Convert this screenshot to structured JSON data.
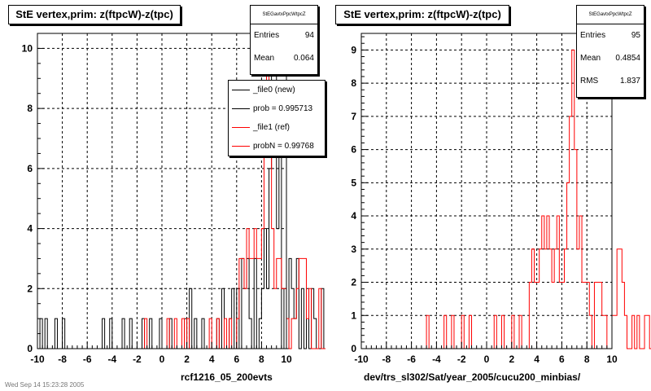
{
  "footer": {
    "text": "Wed Sep 14 15:23:28 2005"
  },
  "colors": {
    "new": "#000000",
    "ref": "#ff0000",
    "grid": "#000000"
  },
  "legend": {
    "entries": [
      {
        "label": "_file0 (new)",
        "color": "#000000"
      },
      {
        "label": "prob = 0.995713",
        "color": "#000000"
      },
      {
        "label": "_file1 (ref)",
        "color": "#ff0000"
      },
      {
        "label": "probN = 0.99768",
        "color": "#ff0000"
      }
    ]
  },
  "panels": [
    {
      "title": "StE  vertex,prim: z(ftpcW)-z(tpc)",
      "stats": {
        "header": "StEGavtxPpcWtpcZ",
        "rows": [
          {
            "label": "Entries",
            "value": "94"
          },
          {
            "label": "Mean",
            "value": "0.064"
          }
        ]
      },
      "xlabel": "rcf1216_05_200evts"
    },
    {
      "title": "StE  vertex,prim: z(ftpcW)-z(tpc)",
      "stats": {
        "header": "StEGavtxPpcWtpcZ",
        "rows": [
          {
            "label": "Entries",
            "value": "95"
          },
          {
            "label": "Mean",
            "value": "0.4854"
          },
          {
            "label": "RMS",
            "value": "1.837"
          }
        ]
      },
      "xlabel": "dev/trs_sl302/Sat/year_2005/cucu200_minbias/"
    }
  ],
  "chart_data": [
    {
      "type": "line",
      "title": "StE  vertex,prim: z(ftpcW)-z(tpc)",
      "xlabel": "rcf1216_05_200evts",
      "ylabel": "",
      "xlim": [
        -10,
        10
      ],
      "ylim": [
        0,
        10.5
      ],
      "x_ticks": [
        -10,
        -8,
        -6,
        -4,
        -2,
        0,
        2,
        4,
        6,
        8,
        10
      ],
      "y_ticks": [
        0,
        2,
        4,
        6,
        8,
        10
      ],
      "grid": true,
      "legend_position": "top-right",
      "bin_edges_from": -10,
      "bin_width": 0.2,
      "series": [
        {
          "name": "_file0 (new)",
          "values": [
            0,
            1,
            0,
            1,
            0,
            0,
            0,
            1,
            0,
            0,
            1,
            0,
            0,
            0,
            0,
            0,
            0,
            0,
            0,
            0,
            0,
            0,
            0,
            0,
            0,
            0,
            1,
            0,
            0,
            1,
            0,
            0,
            0,
            0,
            1,
            0,
            0,
            1,
            0,
            0,
            0,
            0,
            1,
            0,
            0,
            1,
            0,
            0,
            0,
            1,
            0,
            0,
            0,
            1,
            0,
            0,
            0,
            0,
            0,
            1,
            0,
            2,
            0,
            1,
            0,
            0,
            1,
            0,
            0,
            0,
            0,
            0,
            1,
            0,
            2,
            0,
            0,
            1,
            2,
            0,
            2,
            0,
            3,
            2,
            3,
            1,
            0,
            3,
            0,
            1,
            2,
            4,
            2,
            6,
            10,
            10,
            4,
            7,
            0,
            2,
            0,
            3,
            2,
            1,
            3,
            0,
            2,
            0,
            2,
            0,
            2,
            1,
            0,
            0,
            2,
            0,
            0,
            1,
            0,
            2,
            0,
            0,
            0,
            0,
            0,
            0,
            0,
            0,
            0,
            0,
            0,
            0,
            1,
            0,
            0,
            1,
            0,
            0,
            0,
            0,
            0,
            0,
            0,
            0,
            0,
            0,
            0,
            0,
            0,
            0,
            0,
            0,
            0,
            0,
            0,
            1,
            0,
            0,
            1,
            0,
            0,
            0,
            1,
            0,
            0,
            0,
            0,
            0,
            0,
            0,
            0,
            0,
            0,
            0,
            0,
            0,
            0,
            0,
            0,
            0,
            0,
            0,
            0,
            0,
            0,
            0,
            0,
            1,
            0,
            0,
            1,
            1,
            0,
            0,
            0,
            0
          ]
        },
        {
          "name": "_file1 (ref)",
          "values": [
            0,
            0,
            0,
            0,
            0,
            0,
            0,
            0,
            0,
            0,
            0,
            0,
            0,
            0,
            0,
            0,
            0,
            0,
            0,
            0,
            0,
            0,
            0,
            0,
            0,
            0,
            0,
            0,
            0,
            0,
            0,
            0,
            0,
            0,
            0,
            0,
            0,
            0,
            0,
            0,
            0,
            0,
            0,
            1,
            0,
            0,
            0,
            0,
            0,
            0,
            0,
            0,
            1,
            0,
            0,
            1,
            0,
            0,
            1,
            0,
            1,
            0,
            0,
            0,
            0,
            0,
            0,
            0,
            0,
            1,
            0,
            0,
            1,
            0,
            0,
            1,
            0,
            1,
            0,
            0,
            1,
            3,
            3,
            2,
            4,
            3,
            3,
            4,
            3,
            3,
            4,
            8,
            10,
            7,
            4,
            2,
            3,
            3,
            2,
            2,
            1,
            0,
            1,
            1,
            2,
            3,
            3,
            3,
            1,
            2,
            0,
            0,
            0,
            2,
            0,
            0,
            1,
            0,
            3,
            1,
            0,
            1,
            1,
            0,
            0,
            0,
            0,
            0,
            0,
            0,
            0,
            0,
            0,
            0,
            0,
            0,
            0,
            0,
            0,
            0,
            0,
            0,
            0,
            0,
            0,
            0,
            0,
            0,
            0,
            0,
            0,
            1,
            0,
            0,
            1,
            0,
            0,
            0,
            1,
            0,
            0,
            0,
            0,
            0,
            0,
            0,
            0,
            0,
            0,
            0,
            0,
            0,
            0,
            0,
            0,
            0,
            0,
            0,
            0,
            0,
            0,
            0,
            0,
            0,
            0,
            0,
            0,
            0,
            0,
            0,
            0,
            0,
            0,
            0,
            0,
            0
          ]
        }
      ]
    },
    {
      "type": "line",
      "title": "StE  vertex,prim: z(ftpcW)-z(tpc)",
      "xlabel": "dev/trs_sl302/Sat/year_2005/cucu200_minbias/",
      "ylabel": "",
      "xlim": [
        -10,
        10
      ],
      "ylim": [
        0,
        9.5
      ],
      "x_ticks": [
        -10,
        -8,
        -6,
        -4,
        -2,
        0,
        2,
        4,
        6,
        8,
        10
      ],
      "y_ticks": [
        0,
        1,
        2,
        3,
        4,
        5,
        6,
        7,
        8,
        9
      ],
      "grid": true,
      "bin_edges_from": -10,
      "bin_width": 0.2,
      "series": [
        {
          "name": "",
          "values": [
            0,
            0,
            0,
            0,
            0,
            0,
            0,
            0,
            0,
            0,
            0,
            0,
            0,
            0,
            0,
            0,
            0,
            0,
            0,
            0,
            0,
            0,
            0,
            0,
            0,
            0,
            1,
            0,
            0,
            0,
            0,
            0,
            0,
            1,
            0,
            0,
            1,
            0,
            0,
            0,
            1,
            0,
            0,
            1,
            0,
            0,
            0,
            0,
            0,
            0,
            0,
            0,
            0,
            1,
            0,
            0,
            1,
            0,
            0,
            0,
            1,
            0,
            0,
            1,
            0,
            0,
            0,
            2,
            3,
            2,
            2,
            3,
            4,
            3,
            4,
            3,
            2,
            3,
            4,
            2,
            2,
            3,
            5,
            7,
            9,
            6,
            3,
            4,
            2,
            2,
            2,
            1,
            0,
            2,
            2,
            2,
            1,
            1,
            0,
            0,
            1,
            1,
            3,
            3,
            2,
            1,
            0,
            0,
            1,
            0,
            1,
            0,
            0,
            1,
            1,
            0,
            0,
            0,
            0,
            0,
            0,
            0,
            0,
            0,
            0,
            0,
            0,
            0,
            0,
            0,
            0,
            0,
            0,
            0,
            0,
            0,
            0,
            0,
            0,
            0,
            0,
            0,
            0,
            0,
            0,
            0,
            0,
            0,
            0,
            0,
            0,
            0,
            0,
            0,
            0,
            0,
            0,
            0,
            0,
            0,
            0,
            0,
            0,
            0,
            0,
            0,
            0,
            0,
            0,
            0,
            0,
            0,
            0,
            0,
            0,
            0,
            0,
            0,
            0,
            0,
            0,
            0,
            0,
            0,
            0,
            0,
            0,
            0,
            0,
            0,
            0,
            0,
            0,
            0,
            0,
            0,
            0,
            0,
            0,
            0,
            0,
            0,
            0
          ]
        }
      ]
    }
  ]
}
